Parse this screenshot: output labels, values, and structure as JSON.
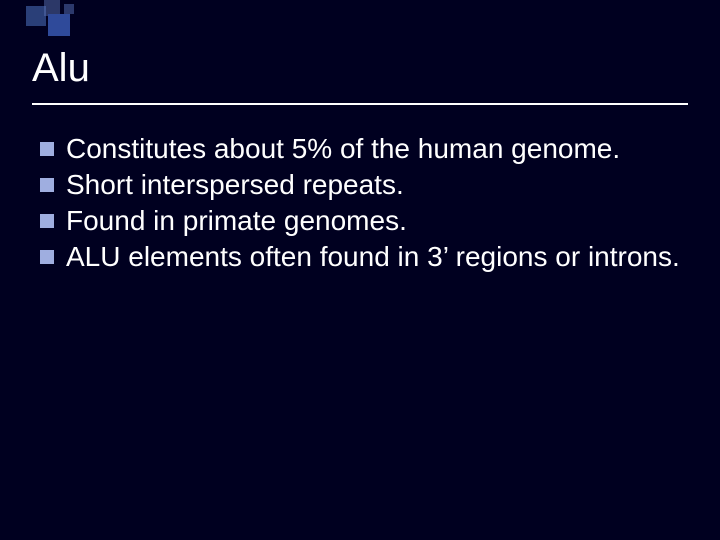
{
  "slide": {
    "background_color": "#000020",
    "title": "Alu",
    "title_color": "#ffffff",
    "title_fontsize": 40,
    "rule_color": "#ffffff",
    "bullet_marker_color": "#9faee0",
    "bullet_text_color": "#ffffff",
    "bullet_fontsize": 28,
    "bullets": [
      "Constitutes about 5% of the human genome.",
      "Short interspersed repeats.",
      "Found in primate genomes.",
      "ALU elements often found in 3’ regions or introns."
    ],
    "deco_squares": [
      {
        "color": "#2a3f78"
      },
      {
        "color": "#586fb0"
      },
      {
        "color": "#2f4a9a"
      },
      {
        "color": "#4a5fa0"
      }
    ]
  }
}
